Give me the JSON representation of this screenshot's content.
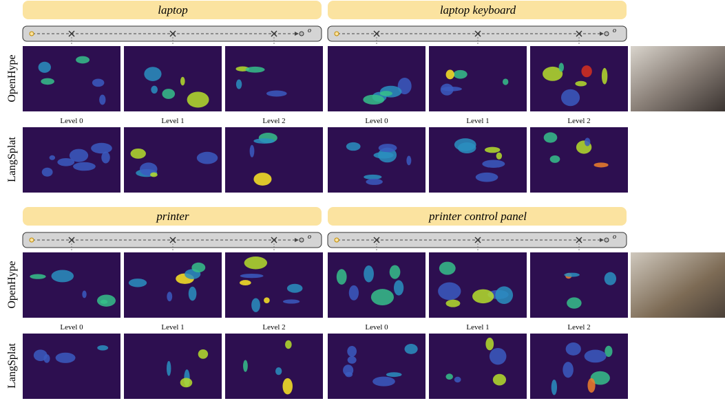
{
  "sections": [
    {
      "queries": [
        {
          "label": "laptop",
          "axis_end": "o",
          "levels": [
            "Level 0",
            "Level 1",
            "Level 2"
          ]
        },
        {
          "label": "laptop keyboard",
          "axis_end": "o",
          "levels": [
            "Level 0",
            "Level 1",
            "Level 2"
          ]
        }
      ],
      "rows": [
        "OpenHype",
        "LangSplat"
      ]
    },
    {
      "queries": [
        {
          "label": "printer",
          "axis_end": "o",
          "levels": [
            "Level 0",
            "Level 1",
            "Level 2"
          ]
        },
        {
          "label": "printer control panel",
          "axis_end": "o",
          "levels": [
            "Level 0",
            "Level 1",
            "Level 2"
          ]
        }
      ],
      "rows": [
        "OpenHype",
        "LangSplat"
      ]
    }
  ]
}
